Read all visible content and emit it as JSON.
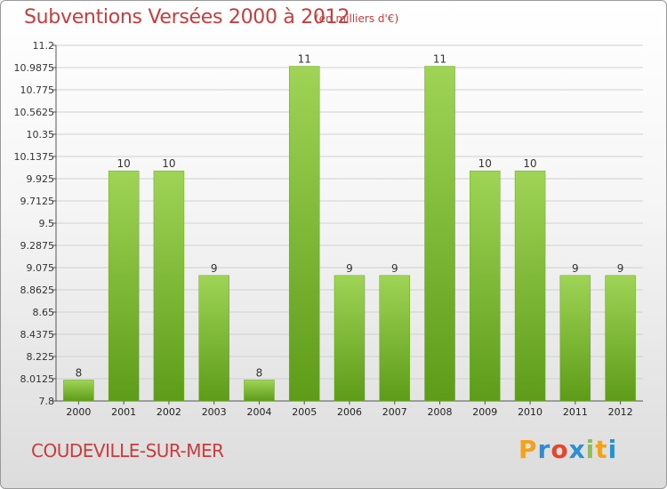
{
  "header": {
    "title": "Subventions Versées 2000 à 2012",
    "subtitle": "(en milliers d'€)"
  },
  "footer": {
    "commune": "COUDEVILLE-SUR-MER",
    "logo_letters": [
      "P",
      "r",
      "o",
      "x",
      "i",
      "t",
      "i"
    ],
    "logo_colors": [
      "#f5a21b",
      "#2a8fd6",
      "#e8452c",
      "#2a8fd6",
      "#8bc34a",
      "#f5a21b",
      "#2a8fd6"
    ]
  },
  "colors": {
    "bar_top": "#9fd456",
    "bar_bottom": "#5d9c18",
    "grid": "#d0d0d0"
  },
  "chart_data": {
    "type": "bar",
    "title": "Subventions Versées 2000 à 2012",
    "ylabel": "(en milliers d'€)",
    "xlabel": "",
    "categories": [
      "2000",
      "2001",
      "2002",
      "2003",
      "2004",
      "2005",
      "2006",
      "2007",
      "2008",
      "2009",
      "2010",
      "2011",
      "2012"
    ],
    "values": [
      8,
      10,
      10,
      9,
      8,
      11,
      9,
      9,
      11,
      10,
      10,
      9,
      9
    ],
    "labels": [
      "8",
      "10",
      "10",
      "9",
      "8",
      "11",
      "9",
      "9",
      "11",
      "10",
      "10",
      "9",
      "9"
    ],
    "ylim": [
      7.8,
      11.2
    ],
    "yticks": [
      7.8,
      8.0125,
      8.225,
      8.4375,
      8.65,
      8.8625,
      9.075,
      9.2875,
      9.5,
      9.7125,
      9.925,
      10.1375,
      10.35,
      10.5625,
      10.775,
      10.9875,
      11.2
    ],
    "ytick_labels": [
      "7.8",
      "8.0125",
      "8.225",
      "8.4375",
      "8.65",
      "8.8625",
      "9.075",
      "9.2875",
      "9.5",
      "9.7125",
      "9.925",
      "10.1375",
      "10.35",
      "10.5625",
      "10.775",
      "10.9875",
      "11.2"
    ],
    "grid": true,
    "legend": "none"
  }
}
